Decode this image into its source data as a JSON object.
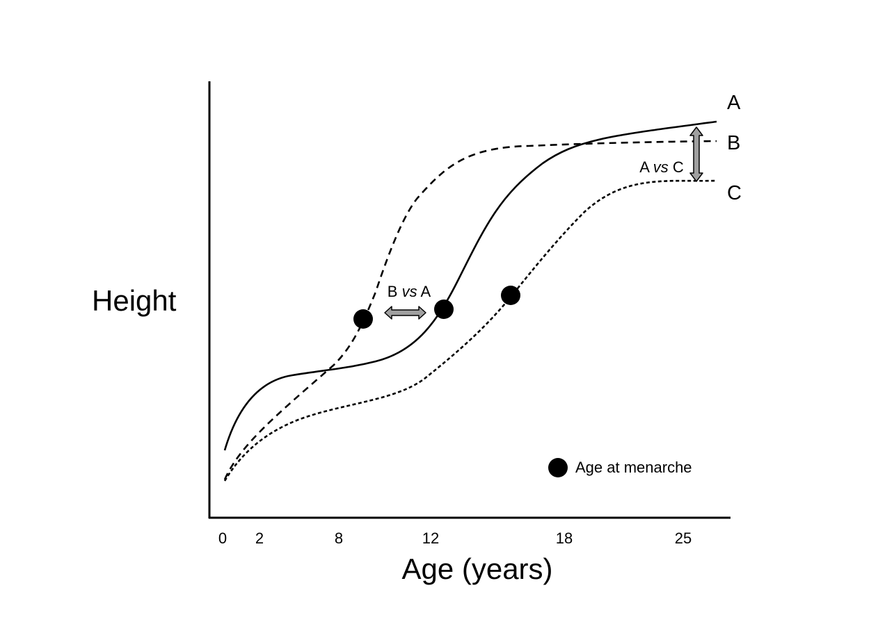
{
  "diagram": {
    "ylabel": "Height",
    "xlabel": "Age (years)",
    "x_ticks": [
      "0",
      "2",
      "8",
      "12",
      "18",
      "25"
    ],
    "curves": [
      {
        "id": "A",
        "label": "A",
        "style": "solid"
      },
      {
        "id": "B",
        "label": "B",
        "style": "long-dash"
      },
      {
        "id": "C",
        "label": "C",
        "style": "short-dash"
      }
    ],
    "comparisons": [
      {
        "id": "b-vs-a",
        "left": "B",
        "mid": "vs",
        "right": "A"
      },
      {
        "id": "a-vs-c",
        "left": "A",
        "mid": "vs",
        "right": "C"
      }
    ],
    "legend": {
      "marker": "filled-circle",
      "label": "Age at menarche"
    },
    "colors": {
      "line": "#000000",
      "arrow_fill": "#a0a0a0",
      "background": "#ffffff"
    }
  }
}
